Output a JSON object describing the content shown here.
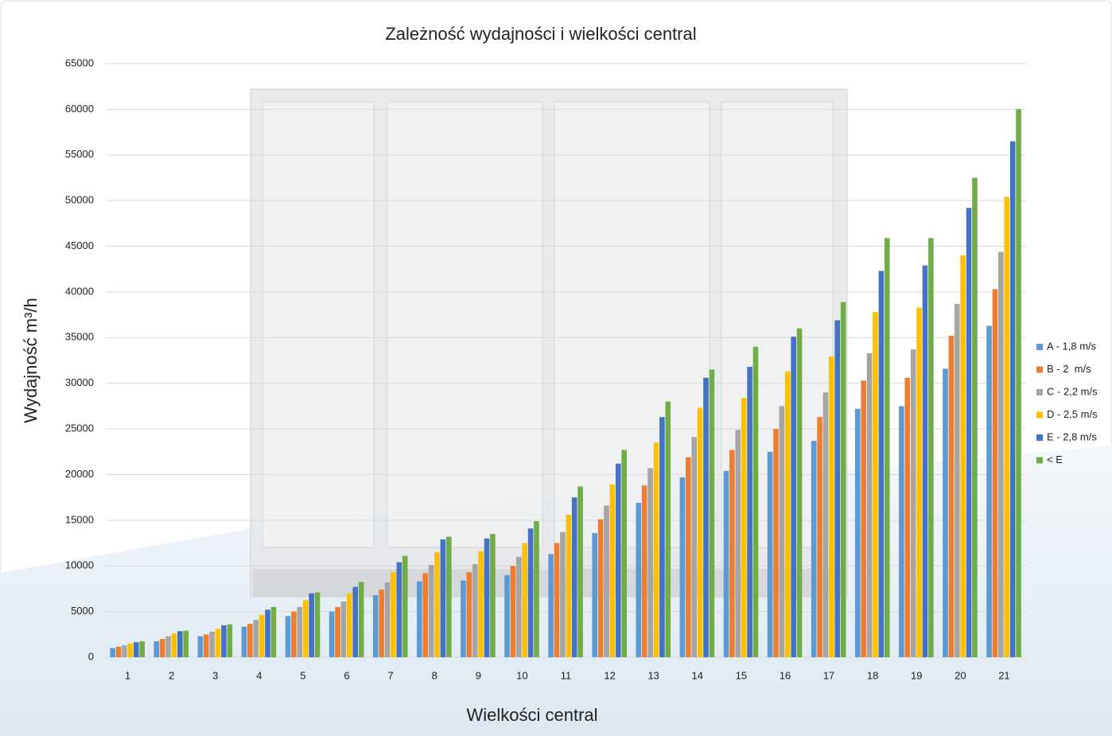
{
  "chart_data": {
    "type": "bar",
    "title": "Zależność wydajności i wielkości central",
    "x_label": "Wielkości central",
    "y_label": "Wydajność m³/h",
    "categories": [
      "1",
      "2",
      "3",
      "4",
      "5",
      "6",
      "7",
      "8",
      "9",
      "10",
      "11",
      "12",
      "13",
      "14",
      "15",
      "16",
      "17",
      "18",
      "19",
      "20",
      "21"
    ],
    "series": [
      {
        "name": "A - 1,8 m/s",
        "color": "#5b9bd5",
        "values": [
          1000,
          1750,
          2300,
          3350,
          4500,
          5000,
          6800,
          8300,
          8400,
          9000,
          11300,
          13600,
          16900,
          19700,
          20400,
          22500,
          23700,
          27200,
          27500,
          31600,
          36300
        ]
      },
      {
        "name": "B - 2  m/s",
        "color": "#ed7d31",
        "values": [
          1150,
          2000,
          2500,
          3650,
          5000,
          5500,
          7400,
          9200,
          9300,
          10000,
          12500,
          15100,
          18800,
          21900,
          22700,
          25000,
          26300,
          30300,
          30600,
          35200,
          40300
        ]
      },
      {
        "name": "C - 2,2 m/s",
        "color": "#a5a5a5",
        "values": [
          1300,
          2300,
          2800,
          4100,
          5500,
          6100,
          8200,
          10100,
          10200,
          11000,
          13700,
          16600,
          20700,
          24100,
          24900,
          27500,
          29000,
          33300,
          33700,
          38700,
          44400
        ]
      },
      {
        "name": "D - 2,5 m/s",
        "color": "#ffc000",
        "values": [
          1500,
          2600,
          3100,
          4650,
          6250,
          7000,
          9300,
          11500,
          11600,
          12500,
          15600,
          18900,
          23500,
          27300,
          28400,
          31300,
          32900,
          37800,
          38300,
          44000,
          50400
        ]
      },
      {
        "name": "E - 2,8 m/s",
        "color": "#4472c4",
        "values": [
          1650,
          2850,
          3500,
          5200,
          7000,
          7700,
          10400,
          12900,
          13000,
          14100,
          17500,
          21200,
          26300,
          30600,
          31800,
          35100,
          36900,
          42300,
          42900,
          49200,
          56500
        ]
      },
      {
        "name": "< E",
        "color": "#70ad47",
        "values": [
          1750,
          2900,
          3600,
          5500,
          7100,
          8250,
          11100,
          13200,
          13500,
          14900,
          18700,
          22700,
          28000,
          31500,
          34000,
          36000,
          38900,
          45900,
          45900,
          52500,
          60000
        ]
      }
    ],
    "ylim": [
      0,
      65000
    ],
    "yticks": [
      0,
      5000,
      10000,
      15000,
      20000,
      25000,
      30000,
      35000,
      40000,
      45000,
      50000,
      55000,
      60000,
      65000
    ],
    "grid": true,
    "legend": "right"
  }
}
